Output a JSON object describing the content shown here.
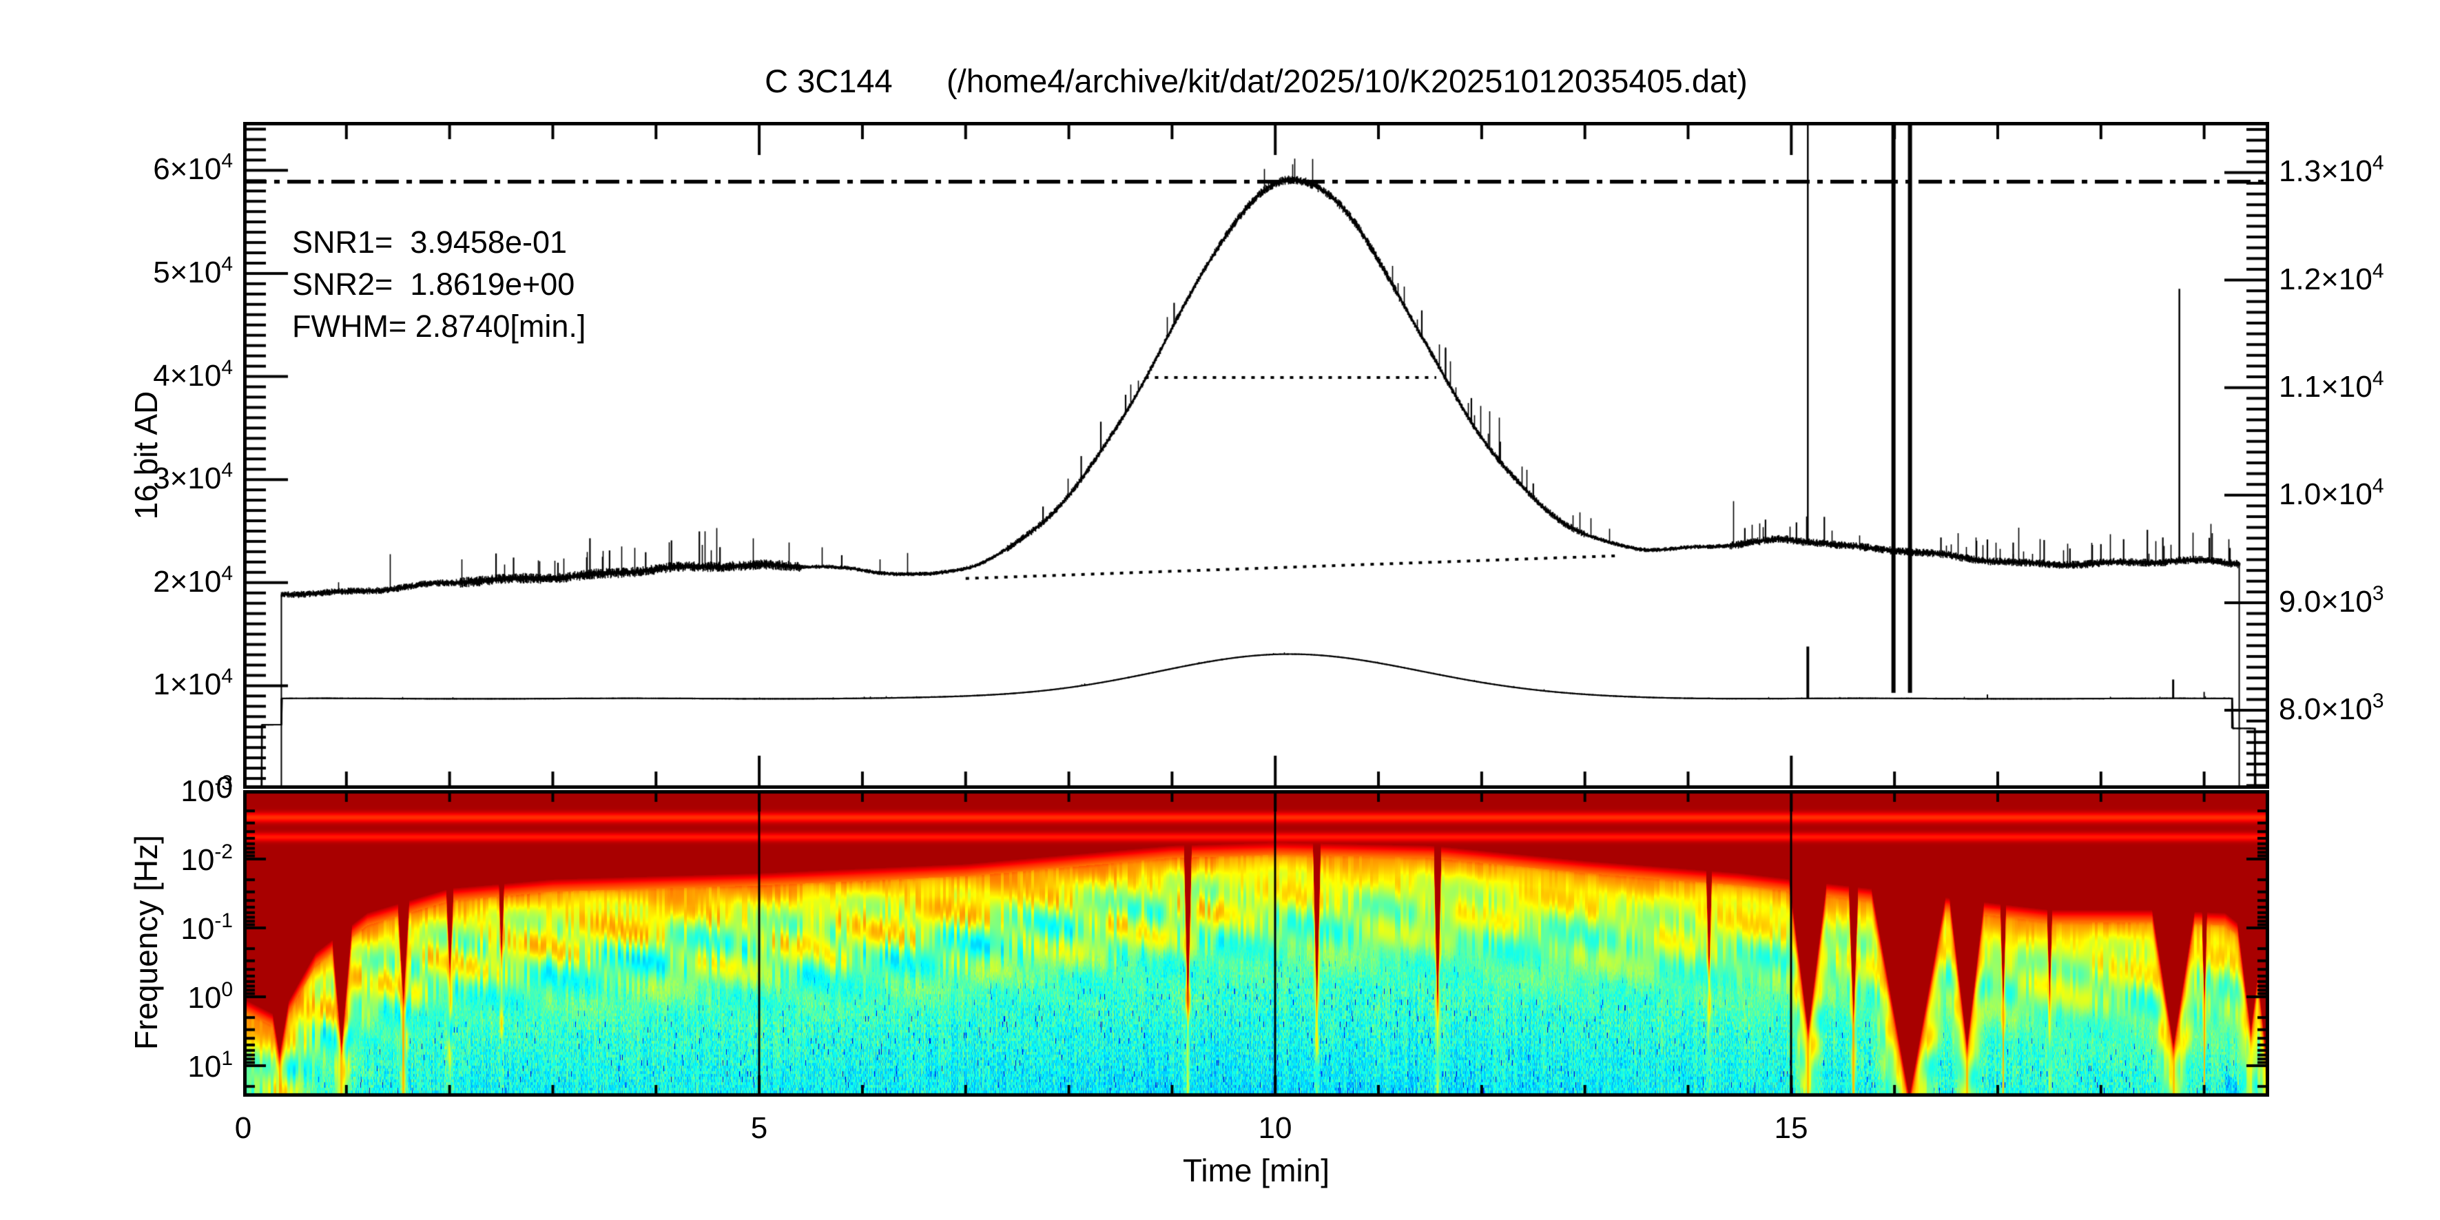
{
  "title": "C 3C144      (/home4/archive/kit/dat/2025/10/K20251012035405.dat)",
  "annotations": {
    "snr1": "SNR1=  3.9458e-01",
    "snr2": "SNR2=  1.8619e+00",
    "fwhm": "FWHM= 2.8740[min.]"
  },
  "axes": {
    "left_label": "16 bit AD",
    "bottom_left_label": "Frequency [Hz]",
    "x_label": "Time [min]",
    "x_ticks": [
      {
        "v": 0,
        "label": "0"
      },
      {
        "v": 5,
        "label": "5"
      },
      {
        "v": 10,
        "label": "10"
      },
      {
        "v": 15,
        "label": "15"
      }
    ],
    "left_ticks": [
      {
        "v": 0,
        "b": "0",
        "s": ""
      },
      {
        "v": 10000,
        "b": "1×10",
        "s": "4"
      },
      {
        "v": 20000,
        "b": "2×10",
        "s": "4"
      },
      {
        "v": 30000,
        "b": "3×10",
        "s": "4"
      },
      {
        "v": 40000,
        "b": "4×10",
        "s": "4"
      },
      {
        "v": 50000,
        "b": "5×10",
        "s": "4"
      },
      {
        "v": 60000,
        "b": "6×10",
        "s": "4"
      }
    ],
    "right_ticks": [
      {
        "v": 8000,
        "b": "8.0×10",
        "s": "3"
      },
      {
        "v": 9000,
        "b": "9.0×10",
        "s": "3"
      },
      {
        "v": 10000,
        "b": "1.0×10",
        "s": "4"
      },
      {
        "v": 11000,
        "b": "1.1×10",
        "s": "4"
      },
      {
        "v": 12000,
        "b": "1.2×10",
        "s": "4"
      },
      {
        "v": 13000,
        "b": "1.3×10",
        "s": "4"
      }
    ],
    "freq_ticks": [
      {
        "e": -3,
        "b": "10",
        "s": "-3"
      },
      {
        "e": -2,
        "b": "10",
        "s": "-2"
      },
      {
        "e": -1,
        "b": "10",
        "s": "-1"
      },
      {
        "e": 0,
        "b": "10",
        "s": "0"
      },
      {
        "e": 1,
        "b": "10",
        "s": "1"
      }
    ]
  },
  "chart_data": [
    {
      "type": "line",
      "name": "drift-scan-time-series",
      "xlabel": "Time [min]",
      "ylabel_left": "16 bit AD",
      "xlim": [
        0,
        19.63
      ],
      "ylim_left": [
        0,
        64700
      ],
      "ylim_right": [
        7270,
        13470
      ],
      "x_major_step": 5,
      "x_minor_step": 1,
      "left_minor_step": 1000,
      "right_minor_step": 100,
      "snr1": 0.39458,
      "snr2": 1.8619,
      "fwhm_min": 2.874,
      "series": [
        {
          "name": "signal-ch1",
          "baseline_points": [
            [
              0.37,
              18800
            ],
            [
              1.0,
              19200
            ],
            [
              2.0,
              19900
            ],
            [
              3.0,
              20600
            ],
            [
              4.0,
              21200
            ],
            [
              4.6,
              21600
            ],
            [
              5.1,
              21800
            ],
            [
              5.6,
              21600
            ],
            [
              6.1,
              20800
            ],
            [
              6.65,
              20150
            ],
            [
              7.1,
              20300
            ],
            [
              7.6,
              20600
            ],
            [
              8.5,
              20900
            ],
            [
              9.5,
              21200
            ],
            [
              10.2,
              21400
            ],
            [
              11.0,
              21500
            ],
            [
              12.0,
              21800
            ],
            [
              13.0,
              22200
            ],
            [
              13.6,
              22600
            ],
            [
              14.2,
              23200
            ],
            [
              14.9,
              24200
            ],
            [
              15.3,
              24000
            ],
            [
              15.7,
              23400
            ],
            [
              16.1,
              23000
            ],
            [
              16.6,
              22400
            ],
            [
              17.2,
              22000
            ],
            [
              17.9,
              21800
            ],
            [
              18.5,
              21900
            ],
            [
              19.0,
              22200
            ],
            [
              19.34,
              22000
            ]
          ],
          "gaussian": {
            "center": 10.17,
            "sigma": 1.2205,
            "amplitude": 37600
          },
          "t_start": 0.37,
          "t_end": 19.34,
          "noise_regions": [
            [
              0,
              2.1,
              260
            ],
            [
              2.1,
              5.4,
              380
            ],
            [
              5.4,
              7.4,
              160
            ],
            [
              7.4,
              9.4,
              260
            ],
            [
              9.4,
              11.2,
              330
            ],
            [
              11.2,
              13.0,
              260
            ],
            [
              13.0,
              14.4,
              170
            ],
            [
              14.4,
              19.4,
              300
            ]
          ],
          "spike_prob_regions": [
            [
              2.2,
              4.7,
              0.05
            ],
            [
              7.9,
              9.3,
              0.04
            ],
            [
              11.3,
              12.6,
              0.04
            ],
            [
              14.4,
              15.5,
              0.04
            ],
            [
              16.4,
              19.35,
              0.06
            ]
          ],
          "rel_spikes": [
            [
              2.45,
              2500
            ],
            [
              2.62,
              2000
            ],
            [
              3.05,
              1500
            ],
            [
              3.36,
              3500
            ],
            [
              3.55,
              2200
            ],
            [
              3.9,
              1800
            ],
            [
              4.15,
              2600
            ],
            [
              4.42,
              3400
            ],
            [
              4.62,
              1900
            ],
            [
              5.8,
              1200
            ],
            [
              7.75,
              1500
            ],
            [
              8.12,
              2200
            ],
            [
              8.31,
              2800
            ],
            [
              8.55,
              1700
            ],
            [
              9.02,
              2000
            ],
            [
              11.42,
              2600
            ],
            [
              11.65,
              3000
            ],
            [
              11.9,
              2400
            ],
            [
              12.18,
              2000
            ],
            [
              12.5,
              1400
            ],
            [
              14.55,
              1500
            ],
            [
              14.75,
              2000
            ],
            [
              15.05,
              1800
            ],
            [
              15.32,
              2600
            ],
            [
              16.45,
              1600
            ],
            [
              16.9,
              2100
            ],
            [
              17.15,
              1900
            ],
            [
              17.45,
              2300
            ],
            [
              17.7,
              1600
            ],
            [
              18.0,
              1800
            ],
            [
              18.22,
              2200
            ],
            [
              18.45,
              3200
            ],
            [
              18.6,
              2400
            ],
            [
              19.05,
              2200
            ],
            [
              19.25,
              1500
            ]
          ],
          "abs_spikes": [
            [
              15.16,
              64700,
              2.5,
              0
            ],
            [
              15.99,
              64700,
              6,
              9300
            ],
            [
              16.15,
              64700,
              6,
              9300
            ],
            [
              18.76,
              48500,
              2.5,
              0
            ]
          ]
        },
        {
          "name": "signal-ch2",
          "steps": [
            [
              0.02,
              0.18,
              80
            ],
            [
              0.18,
              0.37,
              6200
            ],
            [
              0.37,
              19.27,
              8750
            ],
            [
              19.27,
              19.49,
              5850
            ],
            [
              19.49,
              19.62,
              80
            ]
          ],
          "gaussian": {
            "center": 10.15,
            "sigma": 1.3,
            "amplitude": 4300
          },
          "noise_amp": 60,
          "spikes": [
            [
              15.16,
              13800,
              4
            ],
            [
              16.9,
              9150,
              2
            ],
            [
              18.7,
              10600,
              3
            ],
            [
              19.0,
              9400,
              2
            ]
          ]
        }
      ],
      "ref_lines": {
        "dashdot_level": 58900,
        "fwhm_segment": {
          "y": 39900,
          "x1": 8.74,
          "x2": 11.56
        },
        "baseline_segment": {
          "x1": 7.0,
          "y1": 20400,
          "x2": 13.3,
          "y2": 22600
        }
      }
    },
    {
      "type": "heatmap",
      "name": "wavelet-spectrogram",
      "xlabel": "Time [min]",
      "ylabel": "Frequency [Hz]",
      "xlim": [
        0,
        19.63
      ],
      "freq_exponent_range": [
        -3,
        1.45
      ],
      "gridlines_t": [
        5,
        10,
        15
      ],
      "boundary_depth": [
        [
          0,
          0.7
        ],
        [
          0.35,
          0.76
        ],
        [
          0.7,
          0.55
        ],
        [
          1.2,
          0.42
        ],
        [
          2,
          0.34
        ],
        [
          3,
          0.31
        ],
        [
          5,
          0.29
        ],
        [
          7,
          0.26
        ],
        [
          9,
          0.2
        ],
        [
          10,
          0.19
        ],
        [
          11.5,
          0.2
        ],
        [
          13,
          0.25
        ],
        [
          14.5,
          0.29
        ],
        [
          15.5,
          0.33
        ],
        [
          16.5,
          0.37
        ],
        [
          17.5,
          0.41
        ],
        [
          18.5,
          0.41
        ],
        [
          19.2,
          0.42
        ],
        [
          19.5,
          0.5
        ],
        [
          19.63,
          0.6
        ]
      ],
      "cones": [
        [
          0.35,
          0.88,
          0.45,
          1
        ],
        [
          0.95,
          0.85,
          0.22,
          1
        ],
        [
          1.55,
          0.7,
          0.12,
          1
        ],
        [
          2.0,
          0.6,
          0.08,
          0
        ],
        [
          2.5,
          0.55,
          0.06,
          0
        ],
        [
          9.15,
          0.72,
          0.05,
          0
        ],
        [
          10.4,
          0.7,
          0.05,
          0
        ],
        [
          11.57,
          0.72,
          0.05,
          0
        ],
        [
          14.2,
          0.6,
          0.05,
          0
        ],
        [
          15.16,
          0.8,
          0.3,
          1
        ],
        [
          15.6,
          0.75,
          0.08,
          1
        ],
        [
          16.14,
          1.02,
          0.55,
          1
        ],
        [
          16.7,
          0.85,
          0.3,
          1
        ],
        [
          17.05,
          0.7,
          0.06,
          1
        ],
        [
          17.5,
          0.68,
          0.06,
          0
        ],
        [
          18.7,
          0.85,
          0.4,
          1
        ],
        [
          19.0,
          0.7,
          0.06,
          1
        ],
        [
          19.45,
          0.8,
          0.3,
          0
        ],
        [
          19.62,
          0.95,
          0.3,
          0
        ]
      ],
      "streaks_u": [
        0.088,
        0.152
      ]
    }
  ]
}
